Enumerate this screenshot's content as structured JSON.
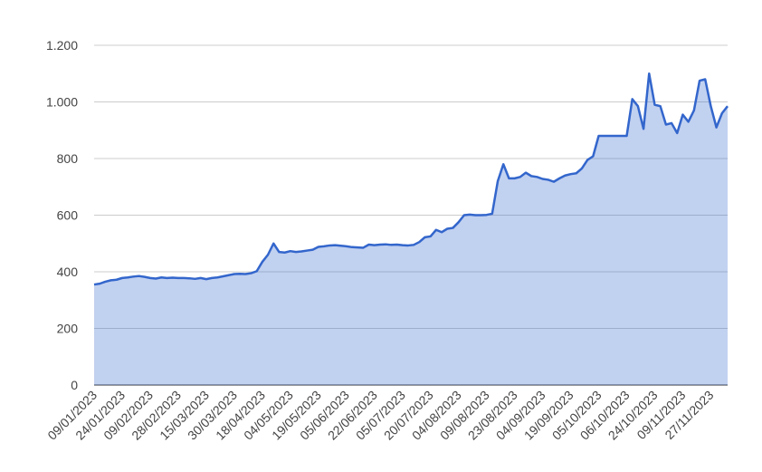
{
  "chart_data": {
    "type": "area",
    "categories": [
      "09/01/2023",
      null,
      null,
      null,
      null,
      "24/01/2023",
      null,
      null,
      null,
      null,
      "09/02/2023",
      null,
      null,
      null,
      null,
      "28/02/2023",
      null,
      null,
      null,
      null,
      "15/03/2023",
      null,
      null,
      null,
      null,
      "30/03/2023",
      null,
      null,
      null,
      null,
      "18/04/2023",
      null,
      null,
      null,
      null,
      "04/05/2023",
      null,
      null,
      null,
      null,
      "19/05/2023",
      null,
      null,
      null,
      null,
      "05/06/2023",
      null,
      null,
      null,
      null,
      "22/06/2023",
      null,
      null,
      null,
      null,
      "05/07/2023",
      null,
      null,
      null,
      null,
      "20/07/2023",
      null,
      null,
      null,
      null,
      "04/08/2023",
      null,
      null,
      null,
      null,
      "09/08/2023",
      null,
      null,
      null,
      null,
      "23/08/2023",
      null,
      null,
      null,
      null,
      "04/09/2023",
      null,
      null,
      null,
      null,
      "19/09/2023",
      null,
      null,
      null,
      null,
      "05/10/2023",
      null,
      null,
      null,
      null,
      "06/10/2023",
      null,
      null,
      null,
      null,
      "24/10/2023",
      null,
      null,
      null,
      null,
      "09/11/2023",
      null,
      null,
      null,
      null,
      "27/11/2023",
      null,
      null,
      null
    ],
    "values": [
      355,
      358,
      365,
      370,
      372,
      378,
      380,
      383,
      385,
      382,
      378,
      376,
      380,
      378,
      379,
      378,
      378,
      377,
      375,
      378,
      374,
      378,
      380,
      384,
      388,
      392,
      393,
      392,
      395,
      402,
      435,
      460,
      500,
      470,
      468,
      473,
      470,
      472,
      475,
      478,
      488,
      490,
      493,
      494,
      492,
      490,
      487,
      486,
      485,
      496,
      494,
      496,
      497,
      495,
      496,
      494,
      493,
      495,
      505,
      522,
      525,
      548,
      540,
      552,
      555,
      575,
      600,
      602,
      600,
      600,
      601,
      605,
      720,
      780,
      730,
      730,
      735,
      750,
      738,
      735,
      728,
      725,
      718,
      730,
      740,
      745,
      748,
      765,
      795,
      808,
      880,
      880,
      880,
      880,
      880,
      880,
      1010,
      985,
      905,
      1100,
      990,
      985,
      920,
      925,
      890,
      955,
      930,
      970,
      1075,
      1080,
      985,
      910,
      960,
      985
    ],
    "color": "#3366cc",
    "ylim": [
      0,
      1200
    ],
    "yticks": [
      0,
      200,
      400,
      600,
      800,
      {
        "value": 1000,
        "label": "1.000"
      },
      {
        "value": 1200,
        "label": "1.200"
      }
    ],
    "grid": true
  }
}
